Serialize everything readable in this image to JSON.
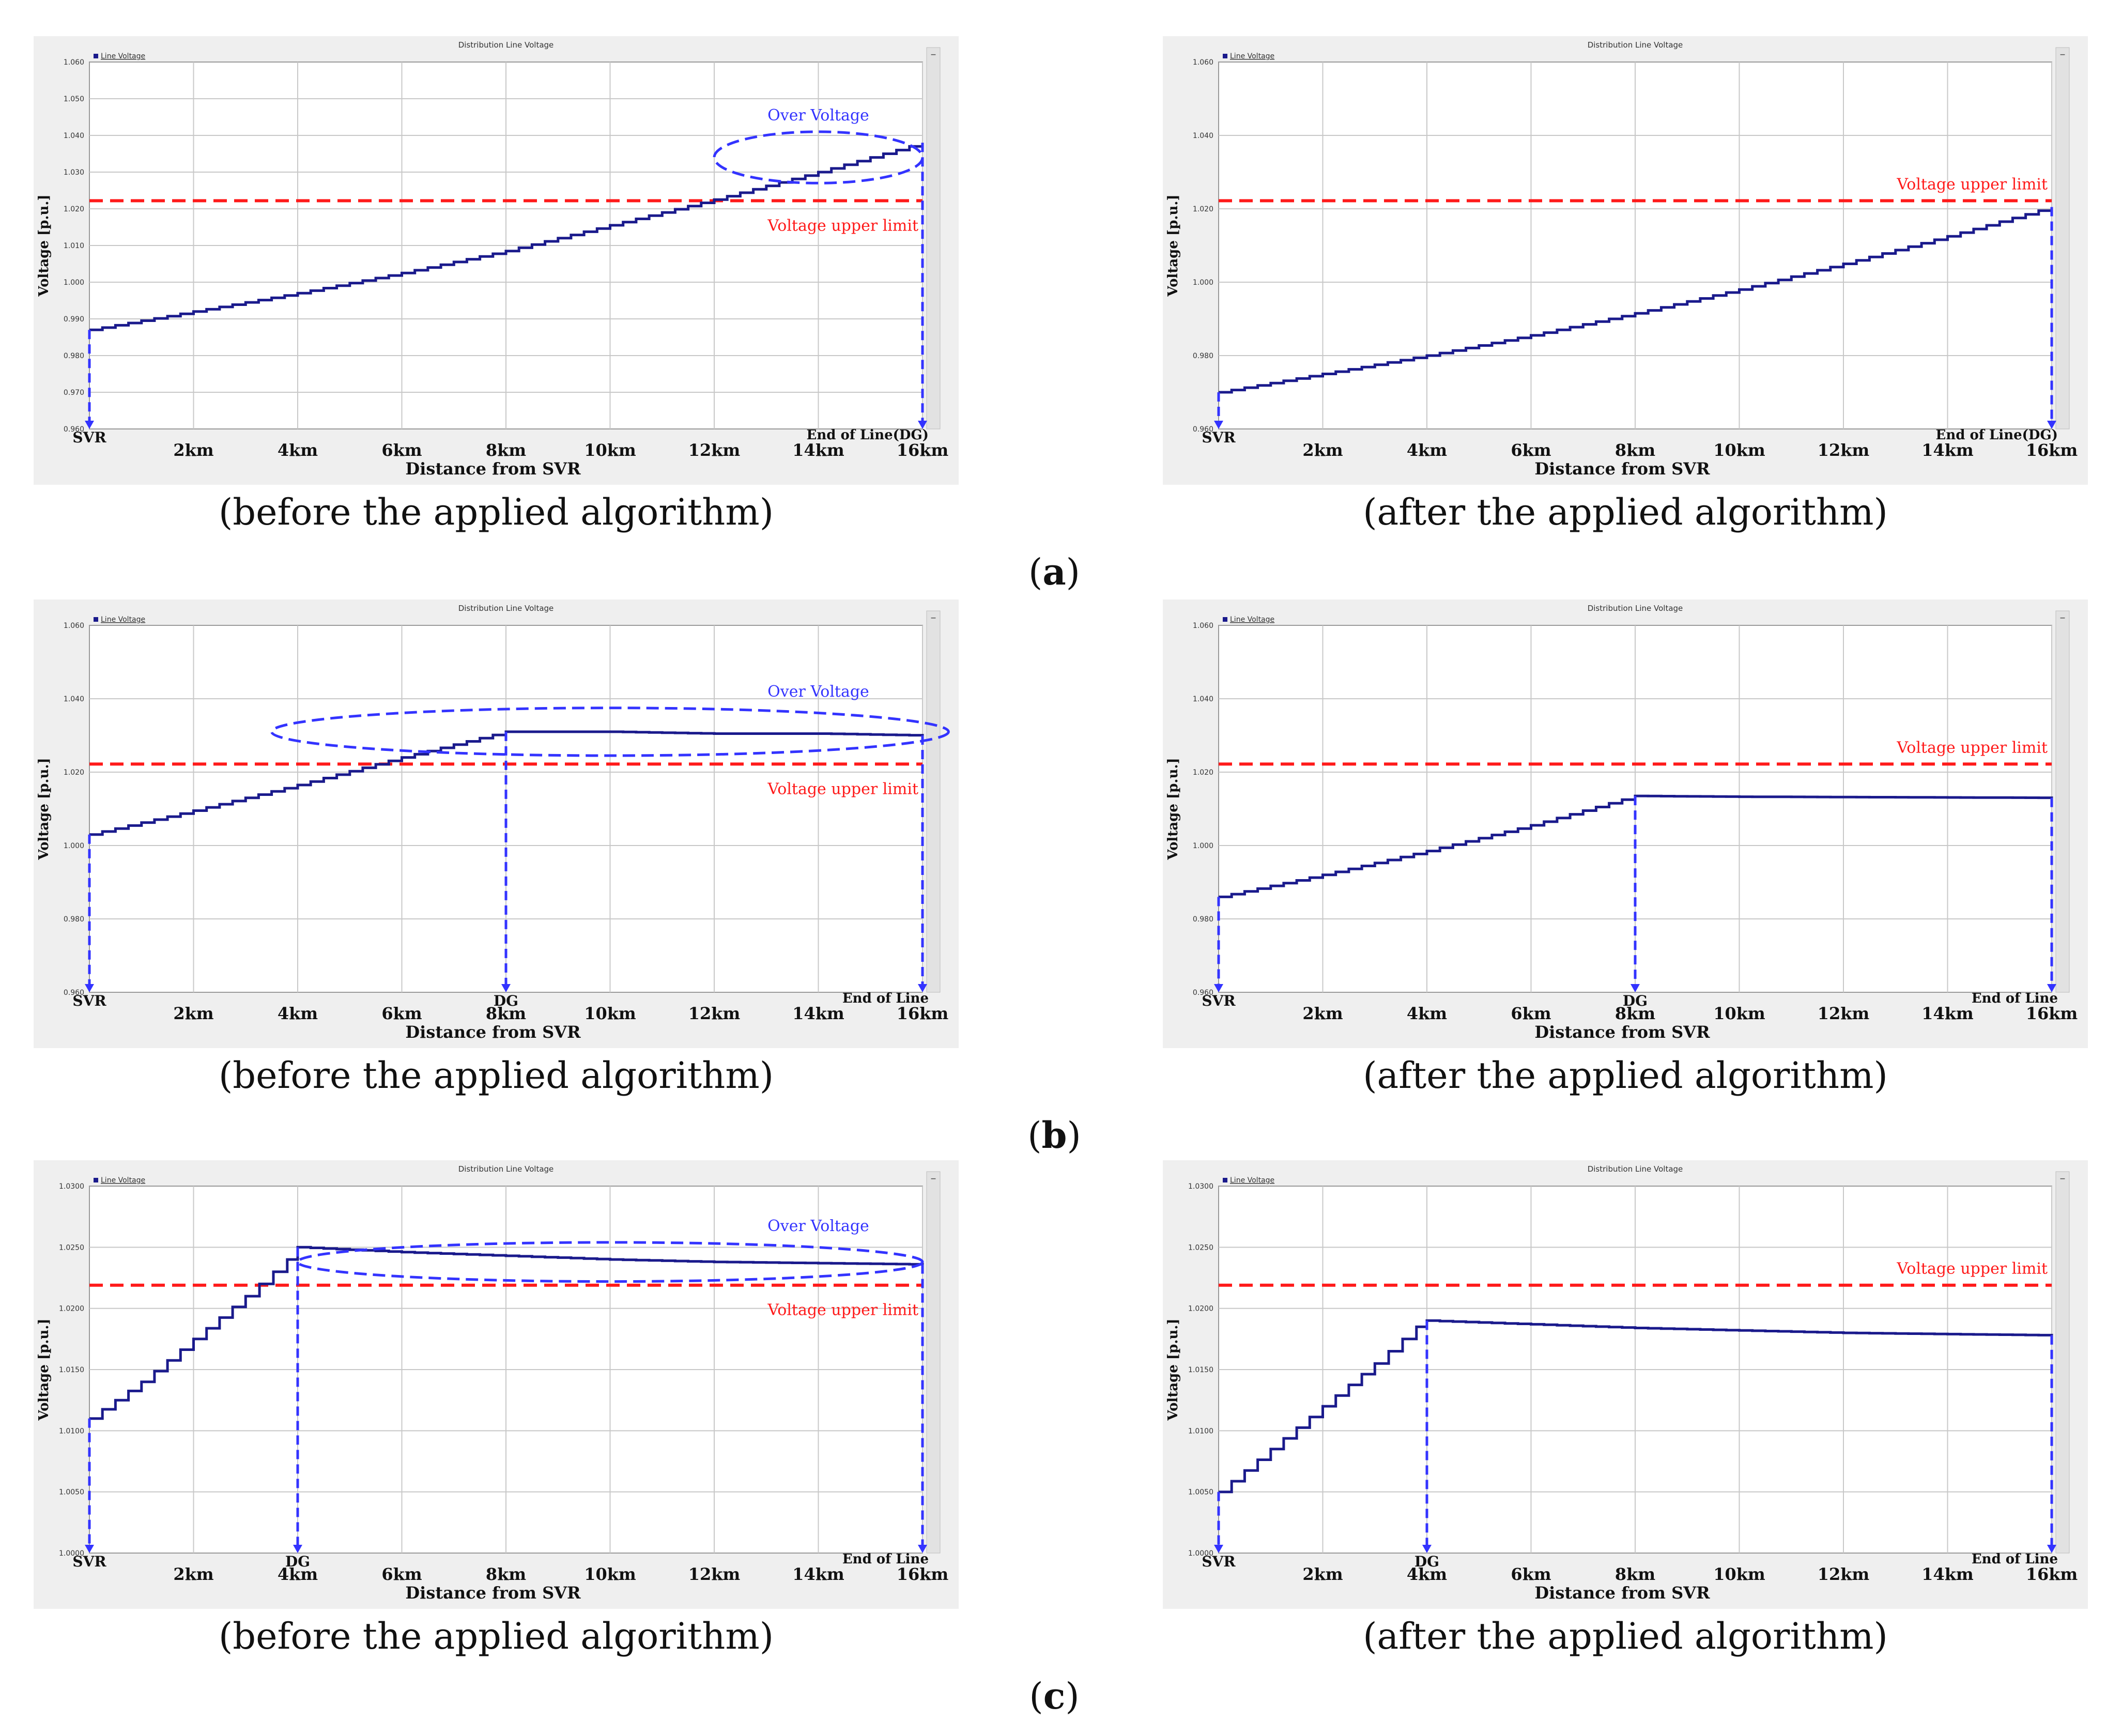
{
  "rows": [
    {
      "label": "a",
      "before_caption": "(before the applied algorithm)",
      "after_caption": "(after the applied algorithm)"
    },
    {
      "label": "b",
      "before_caption": "(before the applied algorithm)",
      "after_caption": "(after the applied algorithm)"
    },
    {
      "label": "c",
      "before_caption": "(before the applied algorithm)",
      "after_caption": "(after the applied algorithm)"
    }
  ],
  "colors": {
    "series": "#1a1a8c",
    "upper_limit": "#ff1a1a",
    "annotation": "#3333ff",
    "grid": "#c8c8c8",
    "frame_bg": "#efefef"
  },
  "chart_data": [
    {
      "id": "a-before",
      "type": "line",
      "title": "Distribution Line Voltage",
      "legend": "Line Voltage",
      "xlabel": "Distance from SVR",
      "ylabel": "Voltage [p.u.]",
      "xlim": [
        0,
        16
      ],
      "ylim": [
        0.96,
        1.06
      ],
      "yticks": [
        0.96,
        0.97,
        0.98,
        0.99,
        1.0,
        1.01,
        1.02,
        1.03,
        1.04,
        1.05,
        1.06
      ],
      "ytick_labels": [
        "0.960",
        "0.970",
        "0.980",
        "0.990",
        "1.000",
        "1.010",
        "1.020",
        "1.030",
        "1.040",
        "1.050",
        "1.060"
      ],
      "xtick_labels": [
        "2km",
        "4km",
        "6km",
        "8km",
        "10km",
        "12km",
        "14km",
        "16km"
      ],
      "upper_limit": 1.0222,
      "upper_limit_label": "Voltage upper limit",
      "over_voltage_label": "Over Voltage",
      "start_label": "SVR",
      "dg_label": "",
      "dg_x": null,
      "end_label": "End of Line(DG)",
      "x": [
        0,
        2,
        4,
        6,
        8,
        10,
        12,
        14,
        16
      ],
      "y": [
        0.987,
        0.992,
        0.997,
        1.0025,
        1.0085,
        1.0155,
        1.0225,
        1.03,
        1.038
      ],
      "step": true,
      "ellipse": [
        14.0,
        1.034,
        2.0,
        0.007
      ]
    },
    {
      "id": "a-after",
      "type": "line",
      "title": "Distribution Line Voltage",
      "legend": "Line Voltage",
      "xlabel": "Distance from SVR",
      "ylabel": "Voltage [p.u.]",
      "xlim": [
        0,
        16
      ],
      "ylim": [
        0.96,
        1.06
      ],
      "yticks": [
        0.96,
        0.98,
        1.0,
        1.02,
        1.04,
        1.06
      ],
      "ytick_labels": [
        "0.960",
        "0.980",
        "1.000",
        "1.020",
        "1.040",
        "1.060"
      ],
      "xtick_labels": [
        "2km",
        "4km",
        "6km",
        "8km",
        "10km",
        "12km",
        "14km",
        "16km"
      ],
      "upper_limit": 1.0222,
      "upper_limit_label": "Voltage upper limit",
      "over_voltage_label": "",
      "start_label": "SVR",
      "dg_label": "",
      "dg_x": null,
      "end_label": "End of Line(DG)",
      "x": [
        0,
        2,
        4,
        6,
        8,
        10,
        12,
        14,
        16
      ],
      "y": [
        0.97,
        0.975,
        0.98,
        0.9855,
        0.9915,
        0.998,
        1.005,
        1.0125,
        1.0205
      ],
      "step": true,
      "ellipse": null
    },
    {
      "id": "b-before",
      "type": "line",
      "title": "Distribution Line Voltage",
      "legend": "Line Voltage",
      "xlabel": "Distance from SVR",
      "ylabel": "Voltage [p.u.]",
      "xlim": [
        0,
        16
      ],
      "ylim": [
        0.96,
        1.06
      ],
      "yticks": [
        0.96,
        0.98,
        1.0,
        1.02,
        1.04,
        1.06
      ],
      "ytick_labels": [
        "0.960",
        "0.980",
        "1.000",
        "1.020",
        "1.040",
        "1.060"
      ],
      "xtick_labels": [
        "2km",
        "4km",
        "6km",
        "8km",
        "10km",
        "12km",
        "14km",
        "16km"
      ],
      "upper_limit": 1.0222,
      "upper_limit_label": "Voltage upper limit",
      "over_voltage_label": "Over Voltage",
      "start_label": "SVR",
      "dg_label": "DG",
      "dg_x": 8,
      "end_label": "End of Line",
      "x": [
        0,
        2,
        4,
        6,
        7,
        8,
        10,
        12,
        14,
        16
      ],
      "y": [
        1.003,
        1.0095,
        1.0165,
        1.024,
        1.0275,
        1.031,
        1.031,
        1.0305,
        1.0305,
        1.03
      ],
      "step": true,
      "ellipse": [
        10.0,
        1.031,
        6.5,
        0.0065
      ]
    },
    {
      "id": "b-after",
      "type": "line",
      "title": "Distribution Line Voltage",
      "legend": "Line Voltage",
      "xlabel": "Distance from SVR",
      "ylabel": "Voltage [p.u.]",
      "xlim": [
        0,
        16
      ],
      "ylim": [
        0.96,
        1.06
      ],
      "yticks": [
        0.96,
        0.98,
        1.0,
        1.02,
        1.04,
        1.06
      ],
      "ytick_labels": [
        "0.960",
        "0.980",
        "1.000",
        "1.020",
        "1.040",
        "1.060"
      ],
      "xtick_labels": [
        "2km",
        "4km",
        "6km",
        "8km",
        "10km",
        "12km",
        "14km",
        "16km"
      ],
      "upper_limit": 1.0222,
      "upper_limit_label": "Voltage upper limit",
      "over_voltage_label": "",
      "start_label": "SVR",
      "dg_label": "DG",
      "dg_x": 8,
      "end_label": "End of Line",
      "x": [
        0,
        2,
        4,
        6,
        8,
        10,
        12,
        14,
        16
      ],
      "y": [
        0.986,
        0.992,
        0.9985,
        1.0055,
        1.0135,
        1.0133,
        1.0132,
        1.0131,
        1.013
      ],
      "step": true,
      "ellipse": null
    },
    {
      "id": "c-before",
      "type": "line",
      "title": "Distribution Line Voltage",
      "legend": "Line Voltage",
      "xlabel": "Distance from SVR",
      "ylabel": "Voltage [p.u.]",
      "xlim": [
        0,
        16
      ],
      "ylim": [
        1.0,
        1.03
      ],
      "yticks": [
        1.0,
        1.005,
        1.01,
        1.015,
        1.02,
        1.025,
        1.03
      ],
      "ytick_labels": [
        "1.0000",
        "1.0050",
        "1.0100",
        "1.0150",
        "1.0200",
        "1.0250",
        "1.0300"
      ],
      "xtick_labels": [
        "2km",
        "4km",
        "6km",
        "8km",
        "10km",
        "12km",
        "14km",
        "16km"
      ],
      "upper_limit": 1.0219,
      "upper_limit_label": "Voltage upper limit",
      "over_voltage_label": "Over Voltage",
      "start_label": "SVR",
      "dg_label": "DG",
      "dg_x": 4,
      "end_label": "End of Line",
      "x": [
        0,
        1,
        2,
        3,
        3.8,
        4,
        6,
        8,
        10,
        12,
        14,
        16
      ],
      "y": [
        1.011,
        1.014,
        1.0175,
        1.021,
        1.024,
        1.025,
        1.0246,
        1.0243,
        1.024,
        1.0238,
        1.0237,
        1.0236
      ],
      "step": true,
      "ellipse": [
        10.0,
        1.0238,
        6.0,
        0.0016
      ]
    },
    {
      "id": "c-after",
      "type": "line",
      "title": "Distribution Line Voltage",
      "legend": "Line Voltage",
      "xlabel": "Distance from SVR",
      "ylabel": "Voltage [p.u.]",
      "xlim": [
        0,
        16
      ],
      "ylim": [
        1.0,
        1.03
      ],
      "yticks": [
        1.0,
        1.005,
        1.01,
        1.015,
        1.02,
        1.025,
        1.03
      ],
      "ytick_labels": [
        "1.0000",
        "1.0050",
        "1.0100",
        "1.0150",
        "1.0200",
        "1.0250",
        "1.0300"
      ],
      "xtick_labels": [
        "2km",
        "4km",
        "6km",
        "8km",
        "10km",
        "12km",
        "14km",
        "16km"
      ],
      "upper_limit": 1.0219,
      "upper_limit_label": "Voltage upper limit",
      "over_voltage_label": "",
      "start_label": "SVR",
      "dg_label": "DG",
      "dg_x": 4,
      "end_label": "End of Line",
      "x": [
        0,
        1,
        2,
        3,
        3.8,
        4,
        6,
        8,
        10,
        12,
        14,
        16
      ],
      "y": [
        1.005,
        1.0085,
        1.012,
        1.0155,
        1.0185,
        1.019,
        1.0187,
        1.0184,
        1.0182,
        1.018,
        1.0179,
        1.0178
      ],
      "step": true,
      "ellipse": null
    }
  ]
}
